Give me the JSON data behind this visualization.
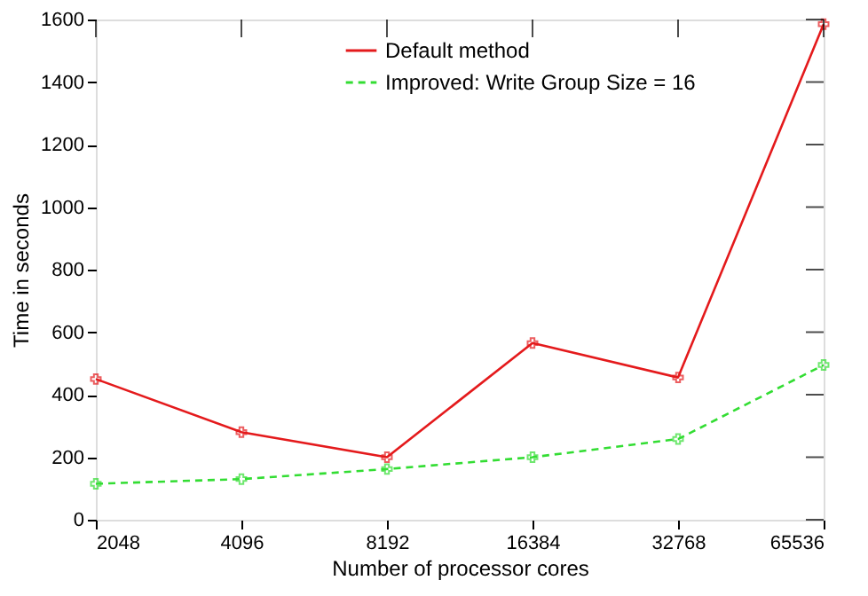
{
  "chart_data": {
    "type": "line",
    "xlabel": "Number of processor cores",
    "ylabel": "Time in seconds",
    "categories": [
      "2048",
      "4096",
      "8192",
      "16384",
      "32768",
      "65536"
    ],
    "series": [
      {
        "name": "Default method",
        "color": "#e41a1c",
        "line_style": "solid",
        "values": [
          450,
          280,
          200,
          565,
          455,
          1585
        ]
      },
      {
        "name": "Improved: Write Group Size = 16",
        "color": "#33dd33",
        "line_style": "dashed",
        "values": [
          115,
          130,
          162,
          200,
          258,
          495
        ]
      }
    ],
    "ylim": [
      0,
      1600
    ],
    "yticks": [
      0,
      200,
      400,
      600,
      800,
      1000,
      1200,
      1400,
      1600
    ],
    "grid": false,
    "legend": "top",
    "marker": "cross"
  }
}
